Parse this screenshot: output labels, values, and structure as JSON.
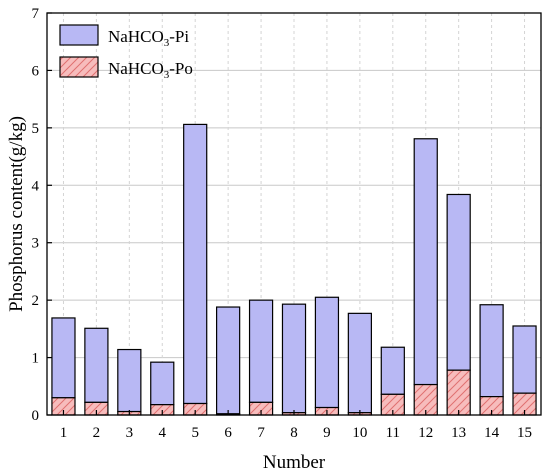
{
  "chart_data": {
    "type": "bar",
    "stacked": true,
    "categories": [
      "1",
      "2",
      "3",
      "4",
      "5",
      "6",
      "7",
      "8",
      "9",
      "10",
      "11",
      "12",
      "13",
      "14",
      "15"
    ],
    "series": [
      {
        "name": "NaHCO3-Pi",
        "legend_main": "NaHCO",
        "legend_sub": "3",
        "legend_suffix": "-Pi",
        "color": "#b8b8f4",
        "values": [
          1.39,
          1.29,
          1.08,
          0.74,
          4.86,
          1.86,
          1.78,
          1.89,
          1.92,
          1.73,
          0.82,
          4.28,
          3.06,
          1.6,
          1.17
        ]
      },
      {
        "name": "NaHCO3-Po",
        "legend_main": "NaHCO",
        "legend_sub": "3",
        "legend_suffix": "-Po",
        "color": "#f7bcbc",
        "hatch": true,
        "values": [
          0.3,
          0.22,
          0.06,
          0.18,
          0.2,
          0.02,
          0.22,
          0.04,
          0.13,
          0.04,
          0.36,
          0.53,
          0.78,
          0.32,
          0.38
        ]
      }
    ],
    "xlabel": "Number",
    "ylabel": "Phosphorus content(g/kg)",
    "ylim": [
      0,
      7
    ],
    "yticks": [
      0,
      1,
      2,
      3,
      4,
      5,
      6,
      7
    ],
    "grid": true,
    "legend_position": "top-left"
  }
}
